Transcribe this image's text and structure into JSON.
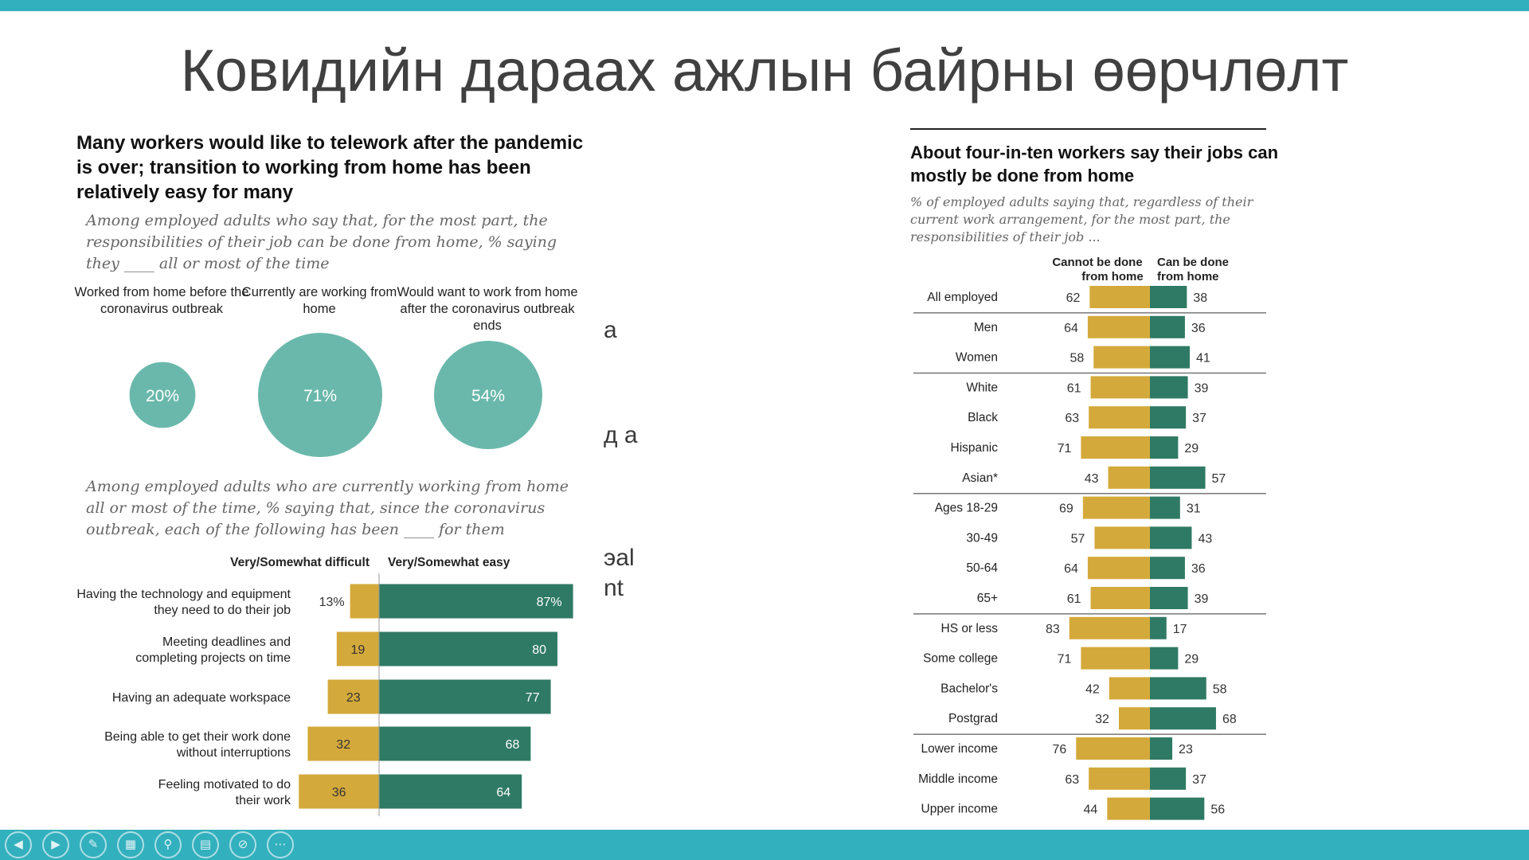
{
  "slide": {
    "title": "Ковидийн дараах ажлын байрны өөрчлөлт",
    "background_fragments": [
      "а",
      "д а",
      "эal",
      "nt"
    ],
    "colors": {
      "accent_bar": "#33b0bd",
      "bubble": "#6ab8ab",
      "difficult": "#d4a93b",
      "easy": "#2f7a64"
    }
  },
  "controls": [
    {
      "icon": "previous-icon"
    },
    {
      "icon": "next-icon"
    },
    {
      "icon": "pen-icon"
    },
    {
      "icon": "slides-grid-icon"
    },
    {
      "icon": "zoom-icon"
    },
    {
      "icon": "subtitles-icon"
    },
    {
      "icon": "hide-icon"
    },
    {
      "icon": "more-icon"
    }
  ],
  "chart_data": [
    {
      "type": "bubble",
      "title": "Many workers would like to telework after the pandemic is over; transition to working from home has been relatively easy for many",
      "subtitle": "Among employed adults who say that, for the most part, the responsibilities of their job can be done from home, % saying they ____ all or most of the time",
      "categories": [
        "Worked from home before the coronavirus outbreak",
        "Currently are working from home",
        "Would want to work from home after the coronavirus outbreak ends"
      ],
      "values": [
        20,
        71,
        54
      ],
      "value_labels": [
        "20%",
        "71%",
        "54%"
      ]
    },
    {
      "type": "bar",
      "stacked": "diverging",
      "subtitle": "Among employed adults who are currently working from home all or most of the time, % saying that, since the coronavirus outbreak, each of the following has been ____ for them",
      "categories": [
        "Having the technology and equipment they need to do their job",
        "Meeting deadlines and completing projects on time",
        "Having an adequate workspace",
        "Being able to get their work done without interruptions",
        "Feeling motivated to do their work"
      ],
      "series": [
        {
          "name": "Very/Somewhat difficult",
          "values": [
            13,
            19,
            23,
            32,
            36
          ],
          "labels": [
            "13%",
            "19",
            "23",
            "32",
            "36"
          ]
        },
        {
          "name": "Very/Somewhat easy",
          "values": [
            87,
            80,
            77,
            68,
            64
          ],
          "labels": [
            "87%",
            "80",
            "77",
            "68",
            "64"
          ]
        }
      ]
    },
    {
      "type": "bar",
      "stacked": "diverging",
      "title": "About four-in-ten workers say their jobs can mostly be done from home",
      "subtitle": "% of employed adults saying that, regardless of their current work arrangement, for the most part, the responsibilities of their job ...",
      "categories": [
        "All employed",
        "Men",
        "Women",
        "White",
        "Black",
        "Hispanic",
        "Asian*",
        "Ages 18-29",
        "30-49",
        "50-64",
        "65+",
        "HS or less",
        "Some college",
        "Bachelor's",
        "Postgrad",
        "Lower income",
        "Middle income",
        "Upper income"
      ],
      "series": [
        {
          "name": "Cannot be done from home",
          "values": [
            62,
            64,
            58,
            61,
            63,
            71,
            43,
            69,
            57,
            64,
            61,
            83,
            71,
            42,
            32,
            76,
            63,
            44
          ]
        },
        {
          "name": "Can be done from home",
          "values": [
            38,
            36,
            41,
            39,
            37,
            29,
            57,
            31,
            43,
            36,
            39,
            17,
            29,
            58,
            68,
            23,
            37,
            56
          ]
        }
      ]
    }
  ]
}
